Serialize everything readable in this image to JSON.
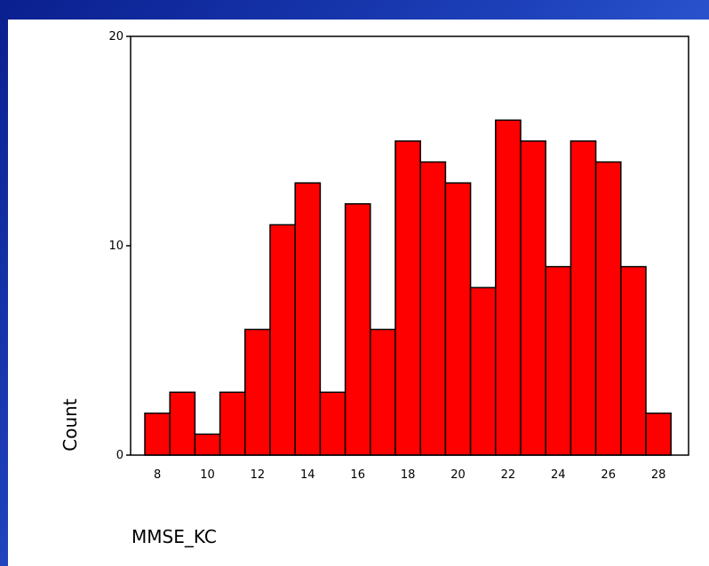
{
  "chart_data": {
    "type": "bar",
    "xlabel": "MMSE_KC",
    "ylabel": "Count",
    "ylim": [
      0,
      20
    ],
    "yticks": [
      0,
      10,
      20
    ],
    "x_tick_labels": [
      "8",
      "10",
      "12",
      "14",
      "16",
      "18",
      "20",
      "22",
      "24",
      "26",
      "28"
    ],
    "bin_start": 7.5,
    "bin_width": 1,
    "categories": [
      "8",
      "9",
      "10",
      "11",
      "12",
      "13",
      "14",
      "15",
      "16",
      "17",
      "18",
      "19",
      "20",
      "21",
      "22",
      "23",
      "24",
      "25",
      "26",
      "27",
      "28"
    ],
    "values": [
      2,
      3,
      1,
      3,
      6,
      11,
      13,
      3,
      12,
      6,
      15,
      14,
      13,
      8,
      16,
      15,
      9,
      15,
      14,
      9,
      2
    ],
    "bar_color": "#ff0000",
    "grid": false
  }
}
